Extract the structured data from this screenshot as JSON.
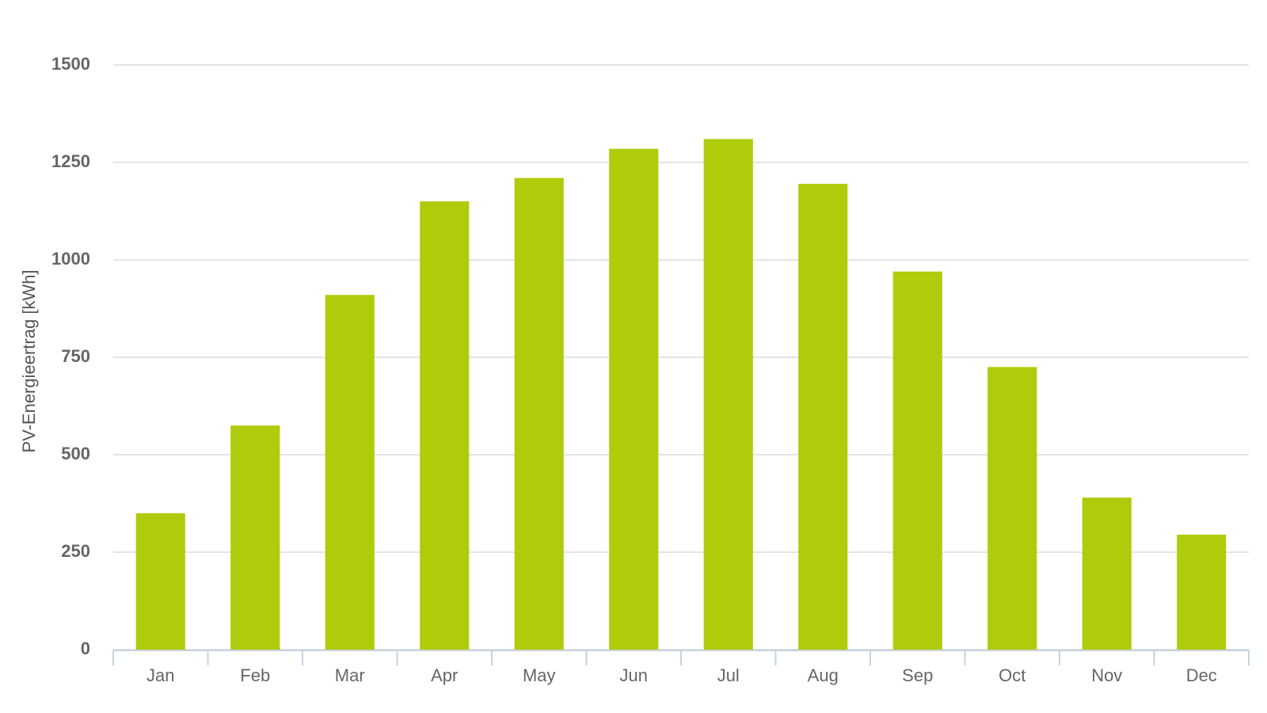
{
  "chart_data": {
    "type": "bar",
    "y_label": "PV-Energieertrag [kWh]",
    "categories": [
      "Jan",
      "Feb",
      "Mar",
      "Apr",
      "May",
      "Jun",
      "Jul",
      "Aug",
      "Sep",
      "Oct",
      "Nov",
      "Dec"
    ],
    "values": [
      350,
      575,
      910,
      1150,
      1210,
      1285,
      1310,
      1195,
      970,
      725,
      390,
      295
    ],
    "color": "#b0cb0a",
    "ylim": [
      0,
      1500
    ],
    "yticks": [
      0,
      250,
      500,
      750,
      1000,
      1250,
      1500
    ],
    "grid": true
  }
}
